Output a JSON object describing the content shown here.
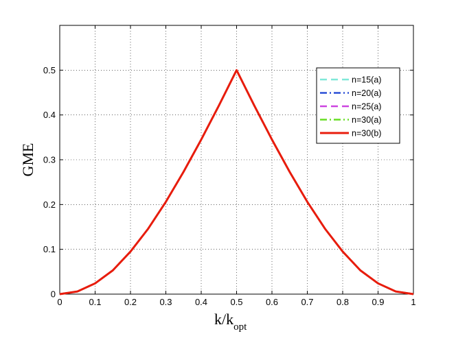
{
  "chart_data": {
    "type": "line",
    "xlabel_main": "k/k",
    "xlabel_sub": "opt",
    "ylabel": "GME",
    "xlim": [
      0,
      1
    ],
    "ylim": [
      0,
      0.6
    ],
    "xticks": [
      "0",
      "0.1",
      "0.2",
      "0.3",
      "0.4",
      "0.5",
      "0.6",
      "0.7",
      "0.8",
      "0.9",
      "1"
    ],
    "yticks": [
      "0",
      "0.1",
      "0.2",
      "0.3",
      "0.4",
      "0.5"
    ],
    "grid": true,
    "legend_position": "top-right",
    "x": [
      0,
      0.05,
      0.1,
      0.15,
      0.2,
      0.25,
      0.3,
      0.35,
      0.4,
      0.45,
      0.5,
      0.55,
      0.6,
      0.65,
      0.7,
      0.75,
      0.8,
      0.85,
      0.9,
      0.95,
      1
    ],
    "series": [
      {
        "name": "n=15(a)",
        "color": "#7fe8d8",
        "dash": "dashed",
        "values": [
          0,
          0.006,
          0.024,
          0.053,
          0.095,
          0.146,
          0.206,
          0.273,
          0.345,
          0.421,
          0.5,
          0.421,
          0.345,
          0.273,
          0.206,
          0.146,
          0.095,
          0.053,
          0.024,
          0.006,
          0
        ]
      },
      {
        "name": "n=20(a)",
        "color": "#2a4fd6",
        "dash": "dashdot",
        "values": [
          0,
          0.006,
          0.024,
          0.053,
          0.095,
          0.146,
          0.206,
          0.273,
          0.345,
          0.421,
          0.5,
          0.421,
          0.345,
          0.273,
          0.206,
          0.146,
          0.095,
          0.053,
          0.024,
          0.006,
          0
        ]
      },
      {
        "name": "n=25(a)",
        "color": "#cc44e0",
        "dash": "dashed",
        "values": [
          0,
          0.006,
          0.024,
          0.053,
          0.095,
          0.146,
          0.206,
          0.273,
          0.345,
          0.421,
          0.5,
          0.421,
          0.345,
          0.273,
          0.206,
          0.146,
          0.095,
          0.053,
          0.024,
          0.006,
          0
        ]
      },
      {
        "name": "n=30(a)",
        "color": "#66dd22",
        "dash": "dashdot",
        "values": [
          0,
          0.006,
          0.024,
          0.053,
          0.095,
          0.146,
          0.206,
          0.273,
          0.345,
          0.421,
          0.5,
          0.421,
          0.345,
          0.273,
          0.206,
          0.146,
          0.095,
          0.053,
          0.024,
          0.006,
          0
        ]
      },
      {
        "name": "n=30(b)",
        "color": "#e81c0c",
        "dash": "solid",
        "values": [
          0,
          0.006,
          0.024,
          0.053,
          0.095,
          0.146,
          0.206,
          0.273,
          0.345,
          0.421,
          0.5,
          0.421,
          0.345,
          0.273,
          0.206,
          0.146,
          0.095,
          0.053,
          0.024,
          0.006,
          0
        ]
      }
    ]
  }
}
